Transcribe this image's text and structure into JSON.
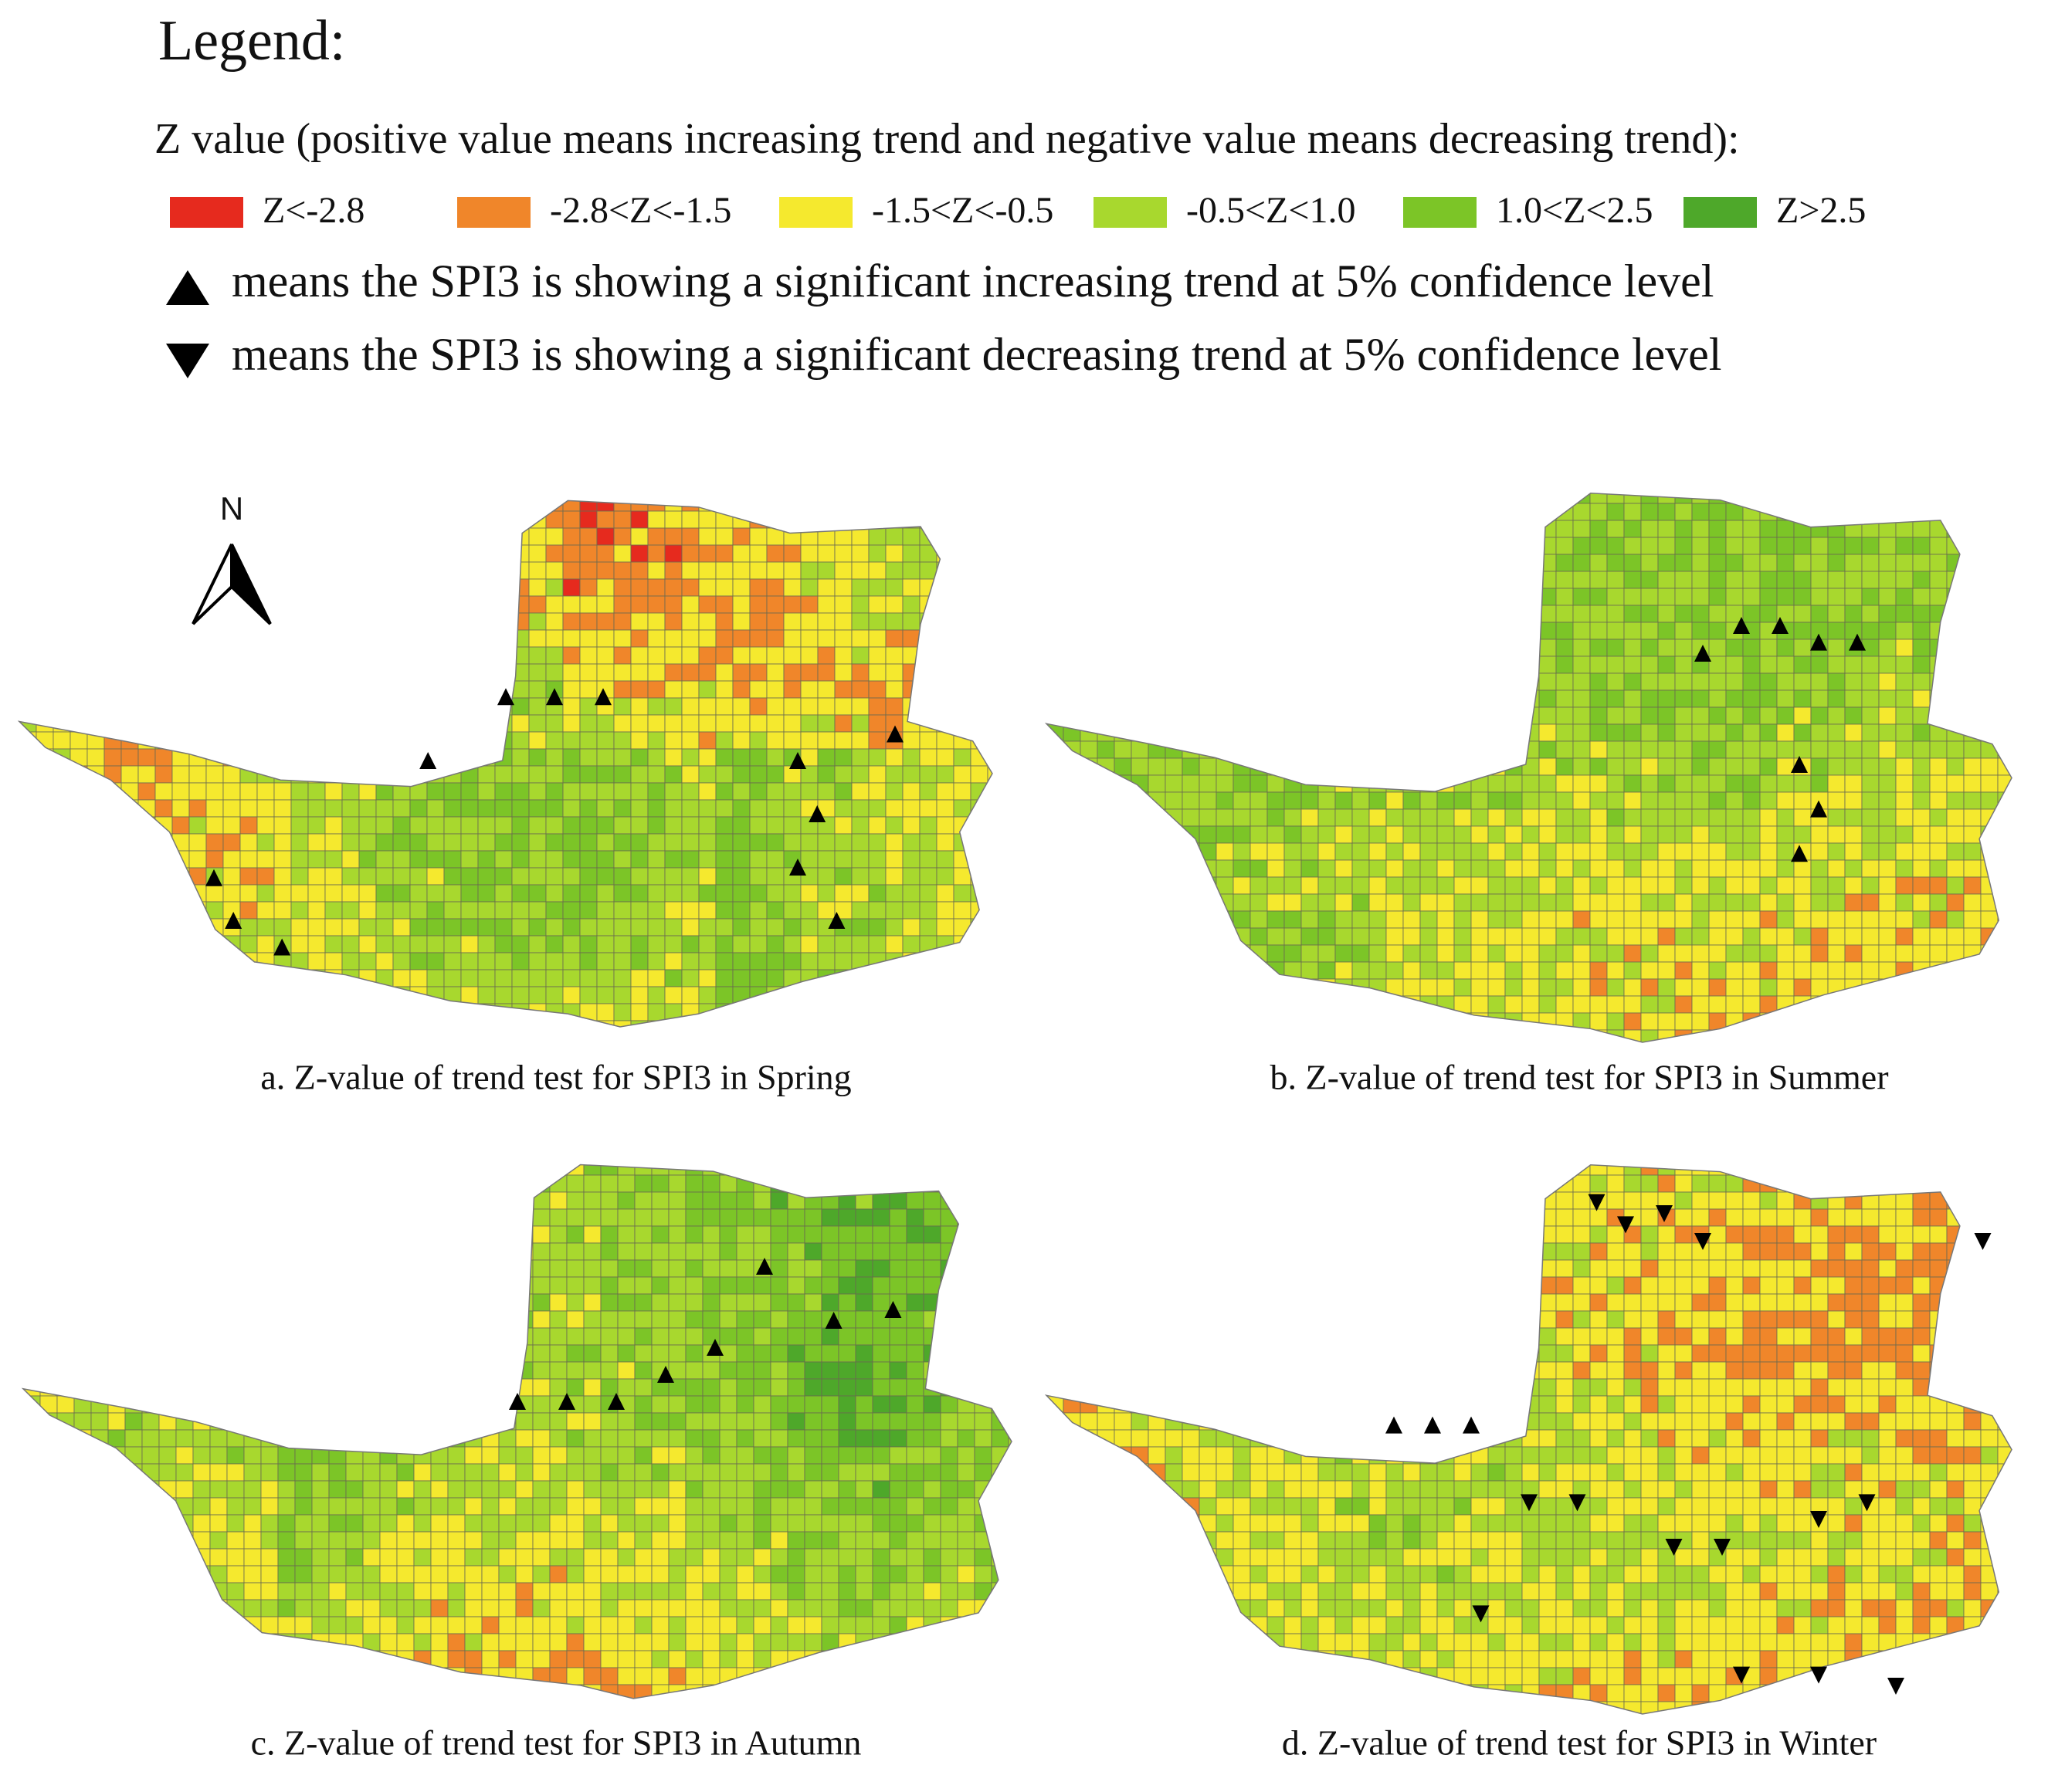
{
  "legend_title": "Legend:",
  "z_description": "Z value (positive value means increasing trend and negative value means decreasing trend):",
  "z_classes": [
    {
      "label": "Z<-2.8",
      "color": "#e62a1e"
    },
    {
      "label": "-2.8<Z<-1.5",
      "color": "#f0862a"
    },
    {
      "label": "-1.5<Z<-0.5",
      "color": "#f5e92e"
    },
    {
      "label": "-0.5<Z<1.0",
      "color": "#a8d82e"
    },
    {
      "label": "1.0<Z<2.5",
      "color": "#7cc527"
    },
    {
      "label": "Z>2.5",
      "color": "#4ea82a"
    }
  ],
  "trend_notes": [
    "means the SPI3 is showing a significant increasing trend at 5% confidence level",
    "means the SPI3 is showing a significant decreasing trend at 5% confidence level"
  ],
  "north_label": "N",
  "panels": [
    {
      "caption": "a.   Z-value of trend test for SPI3 in Spring"
    },
    {
      "caption": "b.   Z-value of trend test for SPI3 in Summer"
    },
    {
      "caption": "c.   Z-value of trend test for SPI3 in Autumn"
    },
    {
      "caption": "d.   Z-value of trend test for SPI3 in Winter"
    }
  ]
}
